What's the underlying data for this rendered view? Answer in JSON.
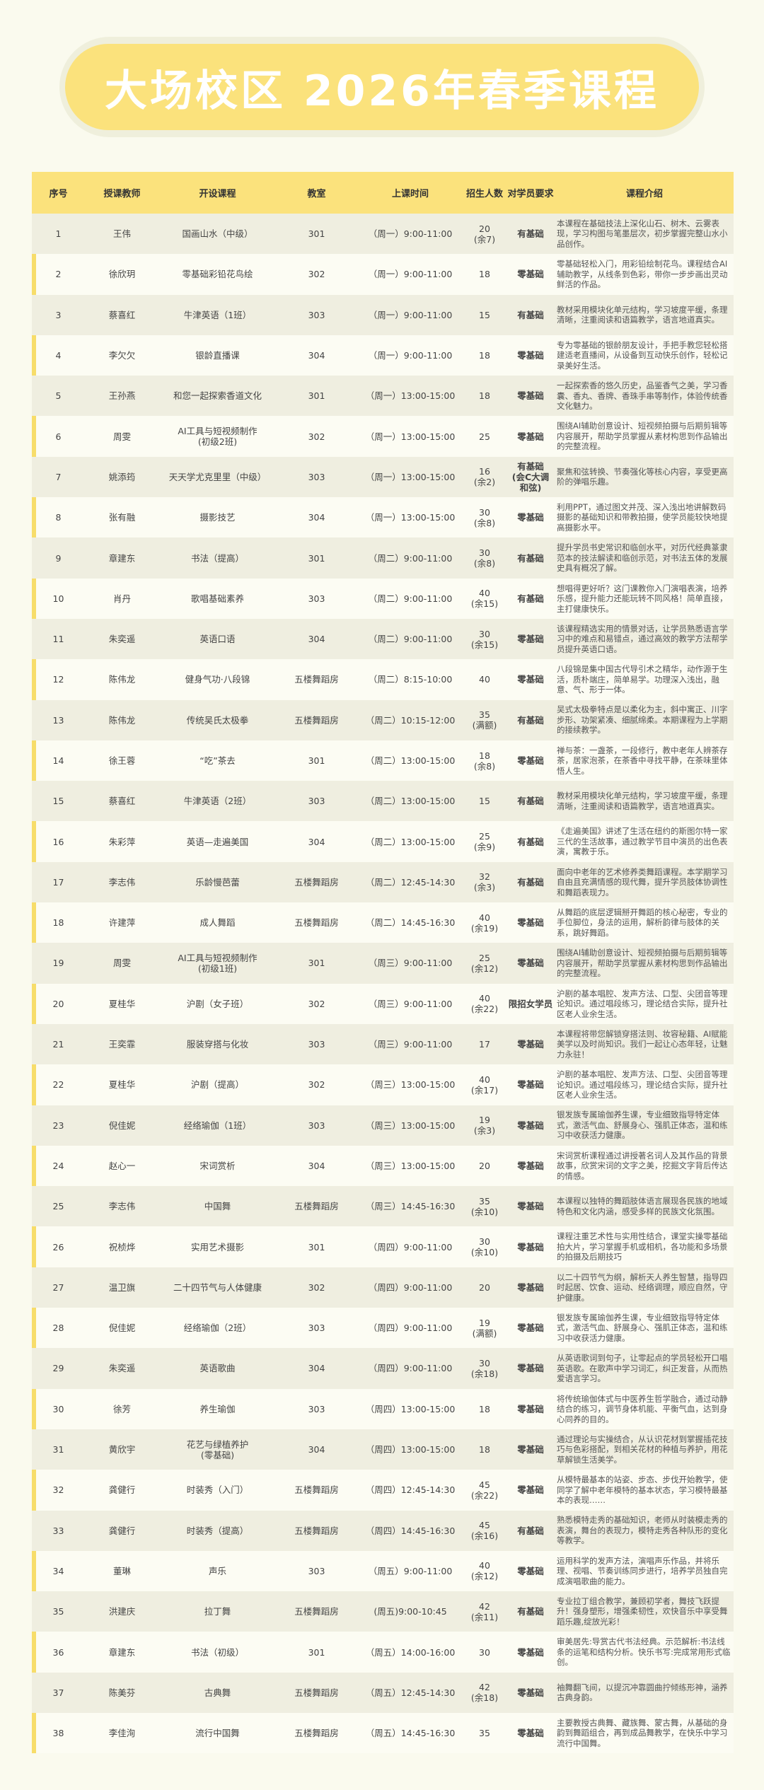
{
  "title": "大场校区 2026年春季课程",
  "headers": [
    "序号",
    "授课教师",
    "开设课程",
    "教室",
    "上课时间",
    "招生人数",
    "对学员要求",
    "课程介绍"
  ],
  "colors": {
    "accent": "#fbe27c",
    "background": "#fafaee",
    "row_alt": "#efeee0"
  },
  "rows": [
    [
      "1",
      "王伟",
      "国画山水（中级）",
      "301",
      "（周一）9:00-11:00",
      "20\n(余7)",
      "有基础",
      "本课程在基础技法上深化山石、树木、云雾表现，学习构图与笔墨层次，初步掌握完整山水小品创作。"
    ],
    [
      "2",
      "徐欣玥",
      "零基础彩铅花鸟绘",
      "302",
      "（周一）9:00-11:00",
      "18",
      "零基础",
      "零基础轻松入门，用彩铅绘制花鸟。课程结合AI辅助教学，从线条到色彩，带你一步步画出灵动鲜活的作品。"
    ],
    [
      "3",
      "蔡喜红",
      "牛津英语（1班）",
      "303",
      "（周一）9:00-11:00",
      "15",
      "有基础",
      "教材采用模块化单元结构，学习坡度平缓，条理清晰，注重阅读和语篇教学，语言地道真实。"
    ],
    [
      "4",
      "李欠欠",
      "银龄直播课",
      "304",
      "（周一）9:00-11:00",
      "18",
      "零基础",
      "专为零基础的银龄朋友设计，手把手教您轻松搭建适老直播间，从设备到互动快乐创作，轻松记录美好生活。"
    ],
    [
      "5",
      "王孙燕",
      "和您一起探索香道文化",
      "301",
      "（周一）13:00-15:00",
      "18",
      "零基础",
      "一起探索香的悠久历史，品鉴香气之美，学习香囊、香丸、香牌、香珠手串等制作，体验传统香文化魅力。"
    ],
    [
      "6",
      "周雯",
      "AI工具与短视频制作\n(初级2班)",
      "302",
      "（周一）13:00-15:00",
      "25",
      "零基础",
      "围绕AI辅助创意设计、短视频拍摄与后期剪辑等内容展开，帮助学员掌握从素材构思到作品输出的完整流程。"
    ],
    [
      "7",
      "姚添筠",
      "天天学尤克里里（中级）",
      "303",
      "（周一）13:00-15:00",
      "16\n(余2)",
      "有基础\n(会C大调\n和弦)",
      "聚焦和弦转换、节奏强化等核心内容，享受更高阶的弹唱乐趣。"
    ],
    [
      "8",
      "张有融",
      "摄影技艺",
      "304",
      "（周一）13:00-15:00",
      "30\n(余8)",
      "零基础",
      "利用PPT，通过图文并茂、深入浅出地讲解数码摄影的基础知识和带教拍摄，使学员能较快地提高摄影水平。"
    ],
    [
      "9",
      "章建东",
      "书法（提高）",
      "301",
      "（周二）9:00-11:00",
      "30\n(余8)",
      "有基础",
      "提升学员书史常识和临创水平，对历代经典篆隶范本的技法解读和临创示范，对书法五体的发展史具有概况了解。"
    ],
    [
      "10",
      "肖丹",
      "歌唱基础素养",
      "303",
      "（周二）9:00-11:00",
      "40\n(余15)",
      "有基础",
      "想唱得更好听？这门课教你入门演唱表演，培养乐感，提升能力还能玩转不同风格！简单直接，主打健康快乐。"
    ],
    [
      "11",
      "朱奕遥",
      "英语口语",
      "304",
      "（周二）9:00-11:00",
      "30\n(余15)",
      "零基础",
      "该课程精选实用的情景对话，让学员熟悉语言学习中的难点和易错点，通过高效的教学方法帮学员提升英语口语。"
    ],
    [
      "12",
      "陈伟龙",
      "健身气功·八段锦",
      "五楼舞蹈房",
      "（周二）8:15-10:00",
      "40",
      "零基础",
      "八段锦是集中国古代导引术之精华，动作源于生活，质朴端庄，简单易学。功理深入浅出，融意、气、形于一体。"
    ],
    [
      "13",
      "陈伟龙",
      "传统吴氏太极拳",
      "五楼舞蹈房",
      "（周二）10:15-12:00",
      "35\n(满额)",
      "有基础",
      "吴式太极拳特点是以柔化为主，斜中寓正、川字步形、功架紧凑、细腻绵柔。本期课程为上学期的接续教学。"
    ],
    [
      "14",
      "徐王蓉",
      "“吃”茶去",
      "301",
      "（周二）13:00-15:00",
      "18\n(余8)",
      "零基础",
      "禅与茶：一盏茶，一段修行，教中老年人辨茶存茶，居家泡茶，在茶香中寻找平静，在茶味里体悟人生。"
    ],
    [
      "15",
      "蔡喜红",
      "牛津英语（2班）",
      "303",
      "（周二）13:00-15:00",
      "15",
      "有基础",
      "教材采用模块化单元结构，学习坡度平缓，条理清晰，注重阅读和语篇教学，语言地道真实。"
    ],
    [
      "16",
      "朱彩萍",
      "英语—走遍美国",
      "304",
      "（周二）13:00-15:00",
      "25\n(余9)",
      "有基础",
      "《走遍美国》讲述了生活在纽约的斯图尔特一家三代的生活故事，通过教学节目中演员的出色表演，寓教于乐。"
    ],
    [
      "17",
      "李志伟",
      "乐龄慢芭蕾",
      "五楼舞蹈房",
      "（周二）12:45-14:30",
      "32\n(余3)",
      "有基础",
      "面向中老年的艺术修养类舞蹈课程。本学期学习自由且充满情感的现代舞，提升学员肢体协调性和舞蹈表现力。"
    ],
    [
      "18",
      "许建萍",
      "成人舞蹈",
      "五楼舞蹈房",
      "（周二）14:45-16:30",
      "40\n(余19)",
      "零基础",
      "从舞蹈的底层逻辑掰开舞蹈的核心秘密，专业的手位脚位，身法的运用，解析韵律与肢体的关系，跳好舞蹈。"
    ],
    [
      "19",
      "周雯",
      "AI工具与短视频制作\n(初级1班)",
      "301",
      "（周三）9:00-11:00",
      "25\n(余12)",
      "零基础",
      "围绕AI辅助创意设计、短视频拍摄与后期剪辑等内容展开，帮助学员掌握从素材构思到作品输出的完整流程。"
    ],
    [
      "20",
      "夏桂华",
      "沪剧（女子班）",
      "302",
      "（周三）9:00-11:00",
      "40\n(余22)",
      "限招女学员",
      "沪剧的基本唱腔、发声方法、口型、尖团音等理论知识。通过唱段练习，理论结合实际，提升社区老人业余生活。"
    ],
    [
      "21",
      "王奕霏",
      "服装穿搭与化妆",
      "303",
      "（周三）9:00-11:00",
      "17",
      "零基础",
      "本课程将带您解锁穿搭法则、妆容秘籍、AI赋能美学以及时尚知识。我们一起让心态年轻，让魅力永驻！"
    ],
    [
      "22",
      "夏桂华",
      "沪剧（提高）",
      "302",
      "（周三）13:00-15:00",
      "40\n(余17)",
      "零基础",
      "沪剧的基本唱腔、发声方法、口型、尖团音等理论知识。通过唱段练习，理论结合实际，提升社区老人业余生活。"
    ],
    [
      "23",
      "倪佳妮",
      "经络瑜伽（1班）",
      "303",
      "（周三）13:00-15:00",
      "19\n(余3)",
      "零基础",
      "银发族专属瑜伽养生课，专业细致指导特定体式，激活气血、舒展身心、强肌正体态，温和练习中收获活力健康。"
    ],
    [
      "24",
      "赵心一",
      "宋词赏析",
      "304",
      "（周三）13:00-15:00",
      "20",
      "零基础",
      "宋词赏析课程通过讲授著名词人及其作品的背景故事，欣赏宋词的文字之美，挖掘文字背后传达的情感。"
    ],
    [
      "25",
      "李志伟",
      "中国舞",
      "五楼舞蹈房",
      "（周三）14:45-16:30",
      "35\n(余10)",
      "零基础",
      "本课程以独特的舞蹈肢体语言展现各民族的地域特色和文化内涵，感受多样的民族文化氛围。"
    ],
    [
      "26",
      "祝桢烨",
      "实用艺术摄影",
      "301",
      "（周四）9:00-11:00",
      "30\n(余10)",
      "零基础",
      "课程注重艺术性与实用性结合，课堂实操零基础拍大片，学习掌握手机或相机，各功能和多场景的拍摄及后期技巧"
    ],
    [
      "27",
      "温卫旗",
      "二十四节气与人体健康",
      "302",
      "（周四）9:00-11:00",
      "20",
      "零基础",
      "以二十四节气为纲，解析天人养生智慧，指导四时起居、饮食、运动、经络调理，顺应自然，守护健康。"
    ],
    [
      "28",
      "倪佳妮",
      "经络瑜伽（2班）",
      "303",
      "（周四）9:00-11:00",
      "19\n(满额)",
      "零基础",
      "银发族专属瑜伽养生课，专业细致指导特定体式，激活气血、舒展身心、强肌正体态，温和练习中收获活力健康。"
    ],
    [
      "29",
      "朱奕遥",
      "英语歌曲",
      "304",
      "（周四）9:00-11:00",
      "30\n(余18)",
      "零基础",
      "从英语歌词到句子，让零起点的学员轻松开口唱英语歌。在歌声中学习词汇，纠正发音，从而热爱语言学习。"
    ],
    [
      "30",
      "徐芳",
      "养生瑜伽",
      "303",
      "（周四）13:00-15:00",
      "18",
      "零基础",
      "将传统瑜伽体式与中医养生哲学融合，通过动静结合的练习，调节身体机能、平衡气血，达到身心同养的目的。"
    ],
    [
      "31",
      "黄欣宇",
      "花艺与绿植养护\n(零基础)",
      "304",
      "（周四）13:00-15:00",
      "18",
      "零基础",
      "通过理论与实操结合，从认识花材到掌握插花技巧与色彩搭配，到相关花材的种植与养护，用花草解锁生活美学。"
    ],
    [
      "32",
      "龚健行",
      "时装秀（入门）",
      "五楼舞蹈房",
      "（周四）12:45-14:30",
      "45\n(余22)",
      "零基础",
      "从模特最基本的站姿、步态、步伐开始教学，使同学了解中老年模特的基本状态，学习模特最基本的表现……"
    ],
    [
      "33",
      "龚健行",
      "时装秀（提高）",
      "五楼舞蹈房",
      "（周四）14:45-16:30",
      "45\n(余16)",
      "有基础",
      "熟悉模特走秀的基础知识，老师从时装模走秀的表演，舞台的表现力，模特走秀各种队形的变化等教学。"
    ],
    [
      "34",
      "董琳",
      "声乐",
      "303",
      "（周五）9:00-11:00",
      "40\n(余12)",
      "零基础",
      "运用科学的发声方法，演唱声乐作品，并将乐理、视唱、节奏训练同步进行，培养学员独自完成演唱歌曲的能力。"
    ],
    [
      "35",
      "洪建庆",
      "拉丁舞",
      "五楼舞蹈房",
      "(周五)9:00-10:45",
      "42\n(余11)",
      "有基础",
      "专业拉丁组合教学，兼顾初学者，舞技飞跃提升！强身塑形，增强柔韧性，欢快音乐中享受舞蹈乐趣,绽放光彩！"
    ],
    [
      "36",
      "章建东",
      "书法（初级）",
      "301",
      "（周五）14:00-16:00",
      "30",
      "零基础",
      "审美居先:导赏古代书法经典。示范解析:书法线条的运笔和结构分析。快乐书写:完成常用形式临创。"
    ],
    [
      "37",
      "陈美芬",
      "古典舞",
      "五楼舞蹈房",
      "（周五）12:45-14:30",
      "42\n(余18)",
      "零基础",
      "袖舞翻飞间，以提沉冲靠圆曲拧倾练形神，涵养古典身韵。"
    ],
    [
      "38",
      "李佳洵",
      "流行中国舞",
      "五楼舞蹈房",
      "（周五）14:45-16:30",
      "35",
      "零基础",
      "主要教授古典舞、藏族舞、蒙古舞，从基础的身韵到舞蹈组合，再到成品舞教学，在快乐中学习流行中国舞。"
    ]
  ]
}
